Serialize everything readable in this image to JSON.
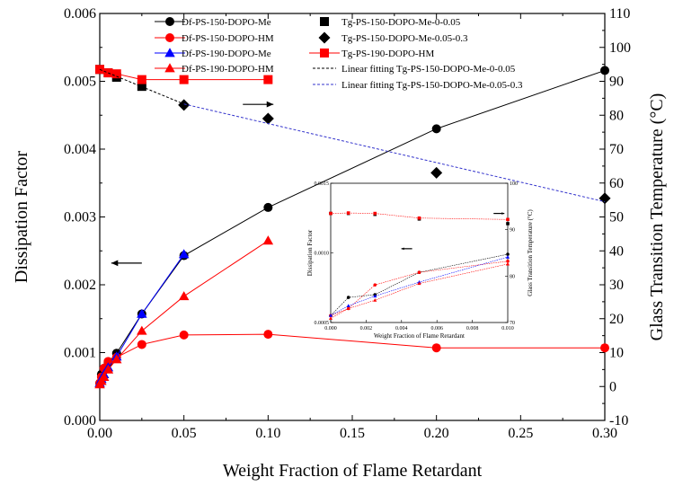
{
  "chart_data": {
    "type": "scatter",
    "title": "",
    "xlabel": "Weight Fraction of Flame Retardant",
    "ylabel_left": "Dissipation Factor",
    "ylabel_right": "Glass Transition Temperature (°C)",
    "xlim": [
      0,
      0.3
    ],
    "ylim_left": [
      0,
      0.006
    ],
    "ylim_right": [
      -10,
      110
    ],
    "x_ticks": [
      "0.00",
      "0.05",
      "0.10",
      "0.15",
      "0.20",
      "0.25",
      "0.30"
    ],
    "y_left_ticks": [
      "0.000",
      "0.001",
      "0.002",
      "0.003",
      "0.004",
      "0.005",
      "0.006"
    ],
    "y_right_ticks": [
      "-10",
      "0",
      "10",
      "20",
      "30",
      "40",
      "50",
      "60",
      "70",
      "80",
      "90",
      "100",
      "110"
    ],
    "grid": false,
    "legend_position": "top",
    "series": [
      {
        "name": "Df-PS-150-DOPO-Me",
        "axis": "left",
        "marker": "circle",
        "color": "#000000",
        "line": true,
        "x": [
          0,
          0.001,
          0.0025,
          0.005,
          0.01,
          0.025,
          0.05,
          0.1,
          0.2,
          0.3
        ],
        "y": [
          0.00055,
          0.00068,
          0.00074,
          0.00085,
          0.00099,
          0.00157,
          0.00243,
          0.00314,
          0.0043,
          0.00516
        ]
      },
      {
        "name": "Df-PS-150-DOPO-HM",
        "axis": "left",
        "marker": "circle",
        "color": "#ff0000",
        "line": true,
        "x": [
          0,
          0.001,
          0.0025,
          0.005,
          0.01,
          0.025,
          0.05,
          0.1,
          0.2,
          0.3
        ],
        "y": [
          0.00055,
          0.00064,
          0.00077,
          0.00087,
          0.00093,
          0.00112,
          0.00126,
          0.00127,
          0.00107,
          0.00107
        ]
      },
      {
        "name": "Df-PS-190-DOPO-Me",
        "axis": "left",
        "marker": "triangle",
        "color": "#0000ff",
        "line": true,
        "x": [
          0,
          0.001,
          0.0025,
          0.005,
          0.01,
          0.025,
          0.05
        ],
        "y": [
          0.00055,
          0.00061,
          0.00068,
          0.00078,
          0.00094,
          0.00157,
          0.00245
        ]
      },
      {
        "name": "Df-PS-190-DOPO-HM",
        "axis": "left",
        "marker": "triangle",
        "color": "#ff0000",
        "line": true,
        "x": [
          0,
          0.001,
          0.0025,
          0.005,
          0.01,
          0.025,
          0.05,
          0.1
        ],
        "y": [
          0.00053,
          0.00058,
          0.00064,
          0.00075,
          0.0009,
          0.00132,
          0.00183,
          0.00265
        ]
      },
      {
        "name": "Tg-PS-150-DOPO-Me-0-0.05",
        "axis": "right",
        "marker": "square",
        "color": "#000000",
        "line": false,
        "x": [
          0,
          0.005,
          0.01,
          0.025
        ],
        "y": [
          93.5,
          92.5,
          91.2,
          88.5
        ]
      },
      {
        "name": "Tg-PS-150-DOPO-Me-0.05-0.3",
        "axis": "right",
        "marker": "diamond",
        "color": "#000000",
        "line": false,
        "x": [
          0.05,
          0.1,
          0.2,
          0.3
        ],
        "y": [
          83,
          79,
          63,
          55.5
        ]
      },
      {
        "name": "Tg-PS-190-DOPO-HM",
        "axis": "right",
        "marker": "square",
        "color": "#ff0000",
        "line": true,
        "x": [
          0,
          0.005,
          0.01,
          0.025,
          0.05,
          0.1
        ],
        "y": [
          93.5,
          92.5,
          92.2,
          90.5,
          90.5,
          90.5
        ]
      },
      {
        "name": "Linear fitting Tg-PS-150-DOPO-Me-0-0.05",
        "axis": "right",
        "style": "dashed",
        "color": "#000000",
        "x": [
          0,
          0.05
        ],
        "y": [
          93.5,
          83.3
        ]
      },
      {
        "name": "Linear fitting Tg-PS-150-DOPO-Me-0.05-0.3",
        "axis": "right",
        "style": "dashed",
        "color": "#3333cc",
        "x": [
          0.05,
          0.3
        ],
        "y": [
          83.3,
          54.5
        ]
      }
    ],
    "annotations": [
      {
        "type": "arrow",
        "direction": "left",
        "at_x": 0.025,
        "at_y": 0.00232,
        "axis": "left"
      },
      {
        "type": "arrow",
        "direction": "right",
        "at_x": 0.085,
        "at_y": 0.00466,
        "axis": "left"
      }
    ],
    "inset": {
      "xlabel": "Weight Fraction of Flame Retardant",
      "ylabel_left": "Dissipation Factor",
      "ylabel_right": "Glass Transition Temperature (°C)",
      "xlim": [
        0,
        0.01
      ],
      "ylim_left": [
        0.0005,
        0.0015
      ],
      "ylim_right": [
        70,
        100
      ],
      "x_ticks": [
        "0.000",
        "0.002",
        "0.004",
        "0.006",
        "0.008",
        "0.010"
      ],
      "y_left_ticks": [
        "0.0005",
        "0.0010",
        "0.0015"
      ],
      "y_right_ticks": [
        "70",
        "80",
        "90",
        "100"
      ],
      "series": [
        {
          "axis": "left",
          "marker": "circle",
          "color": "#000000",
          "line": true,
          "x": [
            0,
            0.001,
            0.0025,
            0.005,
            0.01
          ],
          "y": [
            0.00055,
            0.00068,
            0.0007,
            0.00086,
            0.00099
          ]
        },
        {
          "axis": "left",
          "marker": "circle",
          "color": "#ff0000",
          "line": true,
          "x": [
            0,
            0.001,
            0.0025,
            0.005,
            0.01
          ],
          "y": [
            0.00055,
            0.0006,
            0.00077,
            0.00086,
            0.00094
          ]
        },
        {
          "axis": "left",
          "marker": "triangle",
          "color": "#0000ff",
          "line": true,
          "x": [
            0,
            0.001,
            0.0025,
            0.005,
            0.01
          ],
          "y": [
            0.00055,
            0.00062,
            0.00069,
            0.00079,
            0.00097
          ]
        },
        {
          "axis": "left",
          "marker": "triangle",
          "color": "#ff0000",
          "line": true,
          "x": [
            0,
            0.001,
            0.0025,
            0.005,
            0.01
          ],
          "y": [
            0.00053,
            0.0006,
            0.00066,
            0.00078,
            0.00092
          ]
        },
        {
          "axis": "right",
          "marker": "square",
          "color": "#000000",
          "line": false,
          "x": [
            0,
            0.001,
            0.0025,
            0.005,
            0.01
          ],
          "y": [
            93.5,
            93.5,
            93.3,
            92.3,
            91.3
          ]
        },
        {
          "axis": "right",
          "marker": "square",
          "color": "#ff0000",
          "line": true,
          "x": [
            0,
            0.001,
            0.0025,
            0.005,
            0.01
          ],
          "y": [
            93.5,
            93.6,
            93.5,
            92.5,
            92.2
          ]
        }
      ],
      "annotations": [
        {
          "type": "arrow",
          "direction": "left",
          "at_x": 0.0046,
          "at_y": 0.00103,
          "axis": "left"
        },
        {
          "type": "arrow",
          "direction": "right",
          "at_x": 0.0092,
          "at_y": 93.5,
          "axis": "right"
        }
      ]
    }
  }
}
